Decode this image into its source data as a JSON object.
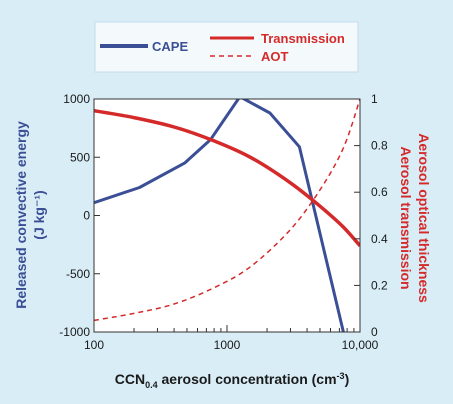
{
  "chart_data": {
    "type": "line",
    "x_axis": {
      "label_main": "CCN",
      "label_sub": "0.4",
      "label_rest": " aerosol concentration (cm",
      "label_exp": "-3",
      "label_close": ")",
      "scale": "log",
      "range": [
        100,
        10000
      ],
      "ticks": [
        100,
        1000,
        10000
      ],
      "tick_labels": [
        "100",
        "1000",
        "10,000"
      ]
    },
    "y_left": {
      "label_line1": "Released convective energy",
      "label_line2": "(J kg⁻¹)",
      "range": [
        -1000,
        1000
      ],
      "ticks": [
        1000,
        500,
        0,
        -500,
        -1000
      ],
      "tick_labels": [
        "1000",
        "500",
        "0",
        "-500",
        "-1000"
      ],
      "color": "#3b4f96"
    },
    "y_right": {
      "label_line1": "Aerosol optical thickness",
      "label_line2": "Aerosol transmission",
      "range": [
        0,
        1
      ],
      "ticks": [
        1,
        0.8,
        0.6,
        0.4,
        0.2,
        0
      ],
      "tick_labels": [
        "1",
        "0.8",
        "0.6",
        "0.4",
        "0.2",
        "0"
      ],
      "color": "#d42a2a"
    },
    "legend": {
      "placement": "top",
      "items": [
        {
          "name": "CAPE",
          "color": "#3b4f96",
          "style": "solid"
        },
        {
          "name": "Transmission",
          "color": "#d42a2a",
          "style": "solid"
        },
        {
          "name": "AOT",
          "color": "#d42a2a",
          "style": "dashed"
        }
      ]
    },
    "series": [
      {
        "name": "CAPE",
        "axis": "left",
        "color": "#3b4f96",
        "style": "solid",
        "x": [
          100,
          220,
          480,
          750,
          1250,
          2100,
          3500,
          7500
        ],
        "y": [
          110,
          240,
          450,
          650,
          1020,
          880,
          590,
          -1000
        ]
      },
      {
        "name": "Transmission",
        "axis": "right",
        "color": "#d42a2a",
        "style": "solid",
        "x": [
          100,
          200,
          400,
          800,
          1500,
          3000,
          5000,
          7500,
          10000
        ],
        "y": [
          0.95,
          0.92,
          0.88,
          0.82,
          0.75,
          0.64,
          0.54,
          0.45,
          0.37
        ]
      },
      {
        "name": "AOT",
        "axis": "right",
        "color": "#d42a2a",
        "style": "dashed",
        "x": [
          100,
          200,
          400,
          800,
          1500,
          3000,
          5000,
          7500,
          10000
        ],
        "y": [
          0.05,
          0.08,
          0.12,
          0.19,
          0.28,
          0.44,
          0.61,
          0.79,
          1.0
        ]
      }
    ]
  }
}
